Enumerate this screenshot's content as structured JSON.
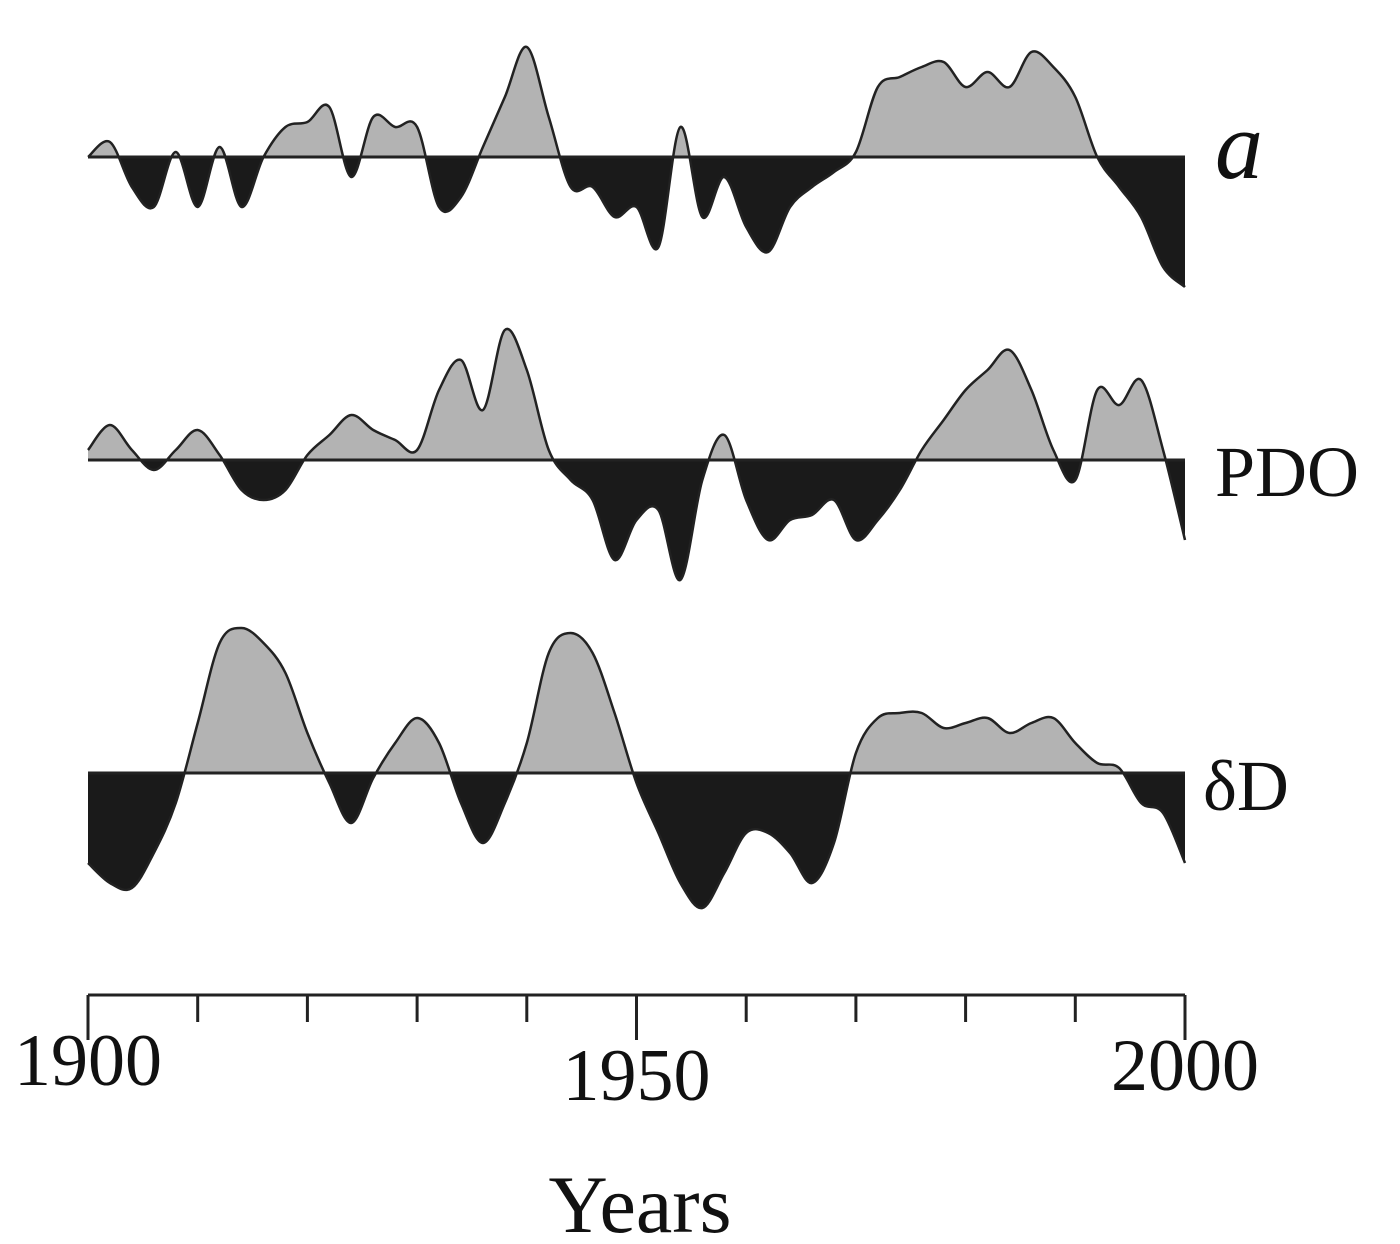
{
  "chart_data": {
    "type": "anomaly-area",
    "x_label": "Years",
    "x": [
      1900,
      1902,
      1904,
      1906,
      1908,
      1910,
      1912,
      1914,
      1916,
      1918,
      1920,
      1922,
      1924,
      1926,
      1928,
      1930,
      1932,
      1934,
      1936,
      1938,
      1940,
      1942,
      1944,
      1946,
      1948,
      1950,
      1952,
      1954,
      1956,
      1958,
      1960,
      1962,
      1964,
      1966,
      1968,
      1970,
      1972,
      1974,
      1976,
      1978,
      1980,
      1982,
      1984,
      1986,
      1988,
      1990,
      1992,
      1994,
      1996,
      1998,
      2000
    ],
    "xlim": [
      1900,
      2000
    ],
    "xticks": [
      1900,
      1950,
      2000
    ],
    "xminor_ticks": [
      1910,
      1920,
      1930,
      1940,
      1960,
      1970,
      1980,
      1990
    ],
    "ylim": [
      -1.5,
      1.5
    ],
    "positive_color": "#b3b3b3",
    "negative_color": "#1a1a1a",
    "series": [
      {
        "name": "a",
        "values": [
          0,
          0.15,
          -0.3,
          -0.5,
          0.05,
          -0.5,
          0.1,
          -0.5,
          0,
          0.3,
          0.35,
          0.5,
          -0.2,
          0.4,
          0.3,
          0.3,
          -0.5,
          -0.4,
          0.1,
          0.6,
          1.1,
          0.4,
          -0.3,
          -0.3,
          -0.6,
          -0.5,
          -0.9,
          0.3,
          -0.6,
          -0.2,
          -0.7,
          -0.95,
          -0.5,
          -0.3,
          -0.15,
          0.05,
          0.7,
          0.8,
          0.9,
          0.95,
          0.7,
          0.85,
          0.7,
          1.05,
          0.9,
          0.6,
          0,
          -0.3,
          -0.6,
          -1.1,
          -1.3
        ]
      },
      {
        "name": "PDO",
        "values": [
          0.1,
          0.35,
          0.1,
          -0.1,
          0.1,
          0.3,
          0.05,
          -0.3,
          -0.4,
          -0.3,
          0.05,
          0.25,
          0.45,
          0.3,
          0.2,
          0.1,
          0.7,
          1.0,
          0.5,
          1.3,
          0.9,
          0.1,
          -0.2,
          -0.4,
          -1.0,
          -0.6,
          -0.5,
          -1.2,
          -0.2,
          0.25,
          -0.4,
          -0.8,
          -0.6,
          -0.55,
          -0.4,
          -0.8,
          -0.6,
          -0.3,
          0.1,
          0.4,
          0.7,
          0.9,
          1.1,
          0.7,
          0.1,
          -0.2,
          0.7,
          0.55,
          0.8,
          0.1,
          -0.8
        ]
      },
      {
        "name": "δD",
        "values": [
          -0.9,
          -1.1,
          -1.15,
          -0.8,
          -0.3,
          0.5,
          1.3,
          1.45,
          1.3,
          1.0,
          0.4,
          -0.1,
          -0.5,
          -0.05,
          0.3,
          0.55,
          0.3,
          -0.3,
          -0.7,
          -0.3,
          0.3,
          1.2,
          1.4,
          1.2,
          0.6,
          -0.1,
          -0.6,
          -1.1,
          -1.35,
          -1.0,
          -0.6,
          -0.6,
          -0.8,
          -1.1,
          -0.7,
          0.2,
          0.55,
          0.6,
          0.6,
          0.45,
          0.5,
          0.55,
          0.4,
          0.5,
          0.55,
          0.3,
          0.1,
          0.05,
          -0.3,
          -0.4,
          -0.9
        ]
      }
    ]
  }
}
